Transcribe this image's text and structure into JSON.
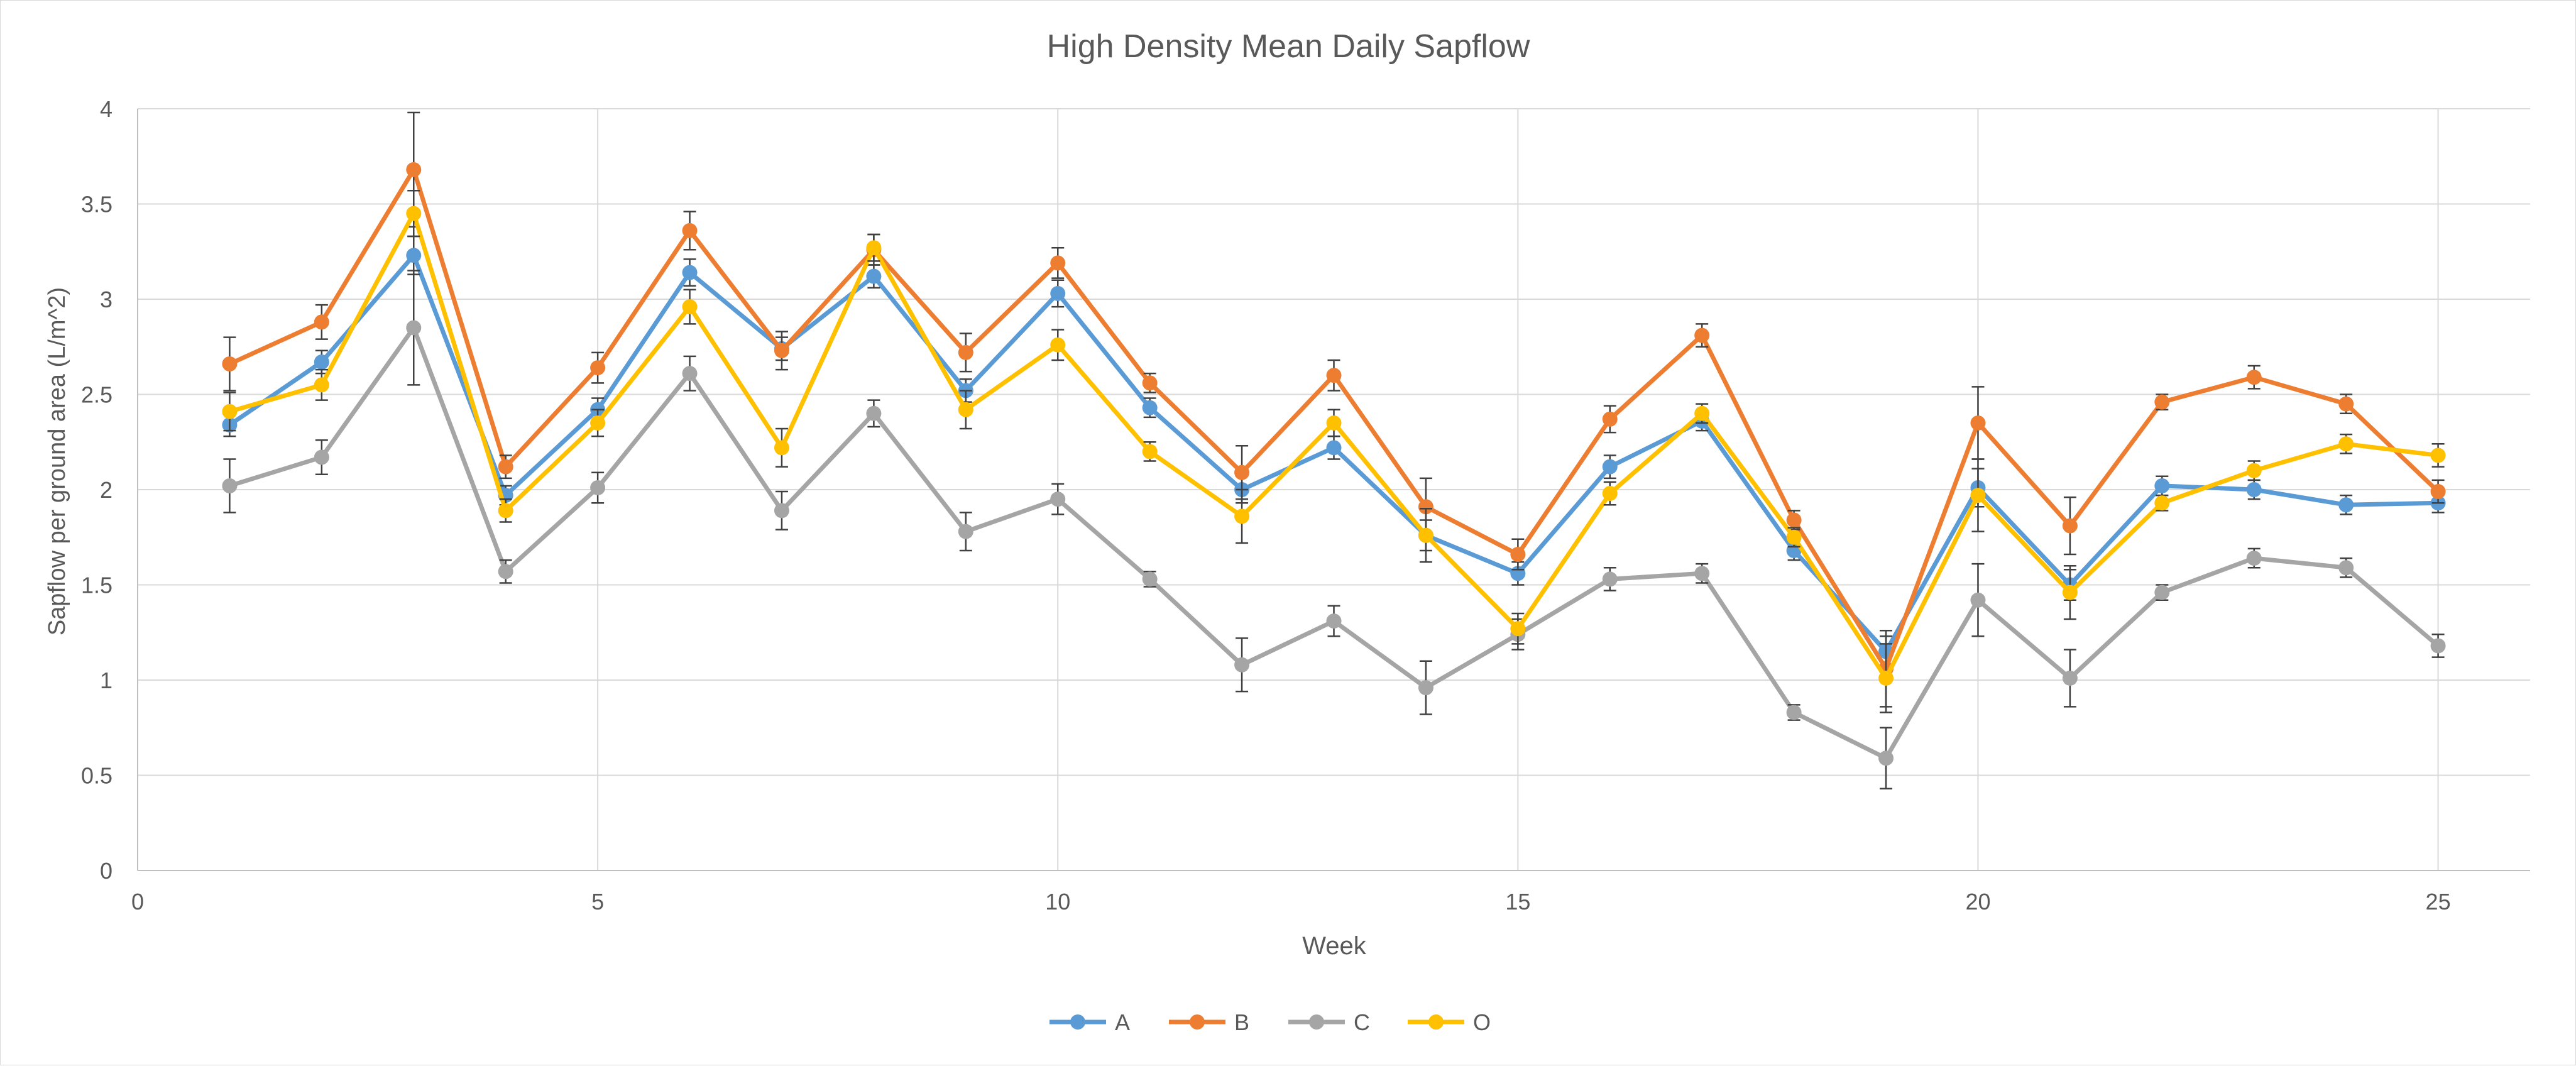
{
  "chart_data": {
    "type": "line",
    "title": "High Density Mean Daily Sapflow",
    "xlabel": "Week",
    "ylabel": "Sapflow per ground area (L/m^2)",
    "xlim": [
      0,
      26
    ],
    "ylim": [
      0,
      4
    ],
    "xticks": [
      0,
      5,
      10,
      15,
      20,
      25
    ],
    "yticks": [
      0,
      0.5,
      1,
      1.5,
      2,
      2.5,
      3,
      3.5,
      4
    ],
    "ytick_labels": [
      "0",
      "0.5",
      "1",
      "1.5",
      "2",
      "2.5",
      "3",
      "3.5",
      "4"
    ],
    "grid": true,
    "legend": "bottom",
    "x": [
      1,
      2,
      3,
      4,
      5,
      6,
      7,
      8,
      9,
      10,
      11,
      12,
      13,
      14,
      15,
      16,
      17,
      18,
      19,
      20,
      21,
      22,
      23,
      24,
      25
    ],
    "series": [
      {
        "name": "A",
        "color": "#5b9bd5",
        "values": [
          2.34,
          2.67,
          3.23,
          1.97,
          2.42,
          3.14,
          2.74,
          3.12,
          2.52,
          3.03,
          2.43,
          2.0,
          2.22,
          1.76,
          1.56,
          2.12,
          2.36,
          1.68,
          1.15,
          2.01,
          1.5,
          2.02,
          2.0,
          1.92,
          1.93
        ],
        "errors": [
          0.06,
          0.06,
          0.1,
          0.05,
          0.06,
          0.07,
          0.06,
          0.06,
          0.06,
          0.07,
          0.05,
          0.07,
          0.06,
          0.08,
          0.06,
          0.06,
          0.05,
          0.05,
          0.08,
          0.1,
          0.08,
          0.05,
          0.05,
          0.05,
          0.05
        ]
      },
      {
        "name": "B",
        "color": "#ed7d31",
        "values": [
          2.66,
          2.88,
          3.68,
          2.12,
          2.64,
          3.36,
          2.73,
          3.26,
          2.72,
          3.19,
          2.56,
          2.09,
          2.6,
          1.91,
          1.66,
          2.37,
          2.81,
          1.84,
          1.06,
          2.35,
          1.81,
          2.46,
          2.59,
          2.45,
          1.99
        ],
        "errors": [
          0.14,
          0.09,
          0.3,
          0.06,
          0.08,
          0.1,
          0.1,
          0.08,
          0.1,
          0.08,
          0.05,
          0.14,
          0.08,
          0.15,
          0.08,
          0.07,
          0.06,
          0.05,
          0.2,
          0.19,
          0.15,
          0.04,
          0.06,
          0.05,
          0.06
        ]
      },
      {
        "name": "C",
        "color": "#a5a5a5",
        "values": [
          2.02,
          2.17,
          2.85,
          1.57,
          2.01,
          2.61,
          1.89,
          2.4,
          1.78,
          1.95,
          1.53,
          1.08,
          1.31,
          0.96,
          1.24,
          1.53,
          1.56,
          0.83,
          0.59,
          1.42,
          1.01,
          1.46,
          1.64,
          1.59,
          1.18
        ],
        "errors": [
          0.14,
          0.09,
          0.3,
          0.06,
          0.08,
          0.09,
          0.1,
          0.07,
          0.1,
          0.08,
          0.04,
          0.14,
          0.08,
          0.14,
          0.08,
          0.06,
          0.05,
          0.04,
          0.16,
          0.19,
          0.15,
          0.04,
          0.05,
          0.05,
          0.06
        ]
      },
      {
        "name": "O",
        "color": "#ffc000",
        "values": [
          2.41,
          2.55,
          3.45,
          1.89,
          2.35,
          2.96,
          2.22,
          3.27,
          2.42,
          2.76,
          2.2,
          1.86,
          2.35,
          1.76,
          1.27,
          1.98,
          2.4,
          1.75,
          1.01,
          1.97,
          1.46,
          1.93,
          2.1,
          2.24,
          2.18
        ],
        "errors": [
          0.1,
          0.08,
          0.12,
          0.06,
          0.07,
          0.09,
          0.1,
          0.07,
          0.1,
          0.08,
          0.05,
          0.14,
          0.07,
          0.14,
          0.08,
          0.06,
          0.05,
          0.05,
          0.18,
          0.19,
          0.14,
          0.04,
          0.05,
          0.05,
          0.06
        ]
      }
    ]
  }
}
